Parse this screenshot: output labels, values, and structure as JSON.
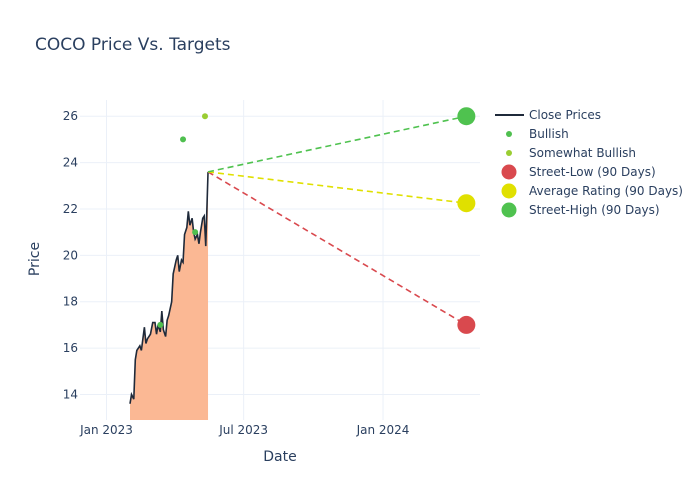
{
  "chart_data": {
    "type": "line",
    "title": "COCO Price Vs. Targets",
    "xlabel": "Date",
    "ylabel": "Price",
    "x_range": [
      "2022-11-27",
      "2024-05-08"
    ],
    "y_range": [
      12.9,
      26.7
    ],
    "x_ticks": [
      {
        "date": "2023-01-01",
        "label": "Jan 2023"
      },
      {
        "date": "2023-07-01",
        "label": "Jul 2023"
      },
      {
        "date": "2024-01-01",
        "label": "Jan 2024"
      }
    ],
    "y_ticks": [
      14,
      16,
      18,
      20,
      22,
      24,
      26
    ],
    "grid": true,
    "close_prices": {
      "name": "Close Prices",
      "color": "#1f2a3a",
      "fill_color": "#fbb894",
      "points": [
        [
          "2023-02-01",
          13.6
        ],
        [
          "2023-02-03",
          14.0
        ],
        [
          "2023-02-06",
          13.8
        ],
        [
          "2023-02-08",
          15.5
        ],
        [
          "2023-02-10",
          15.9
        ],
        [
          "2023-02-14",
          16.1
        ],
        [
          "2023-02-16",
          15.9
        ],
        [
          "2023-02-20",
          16.9
        ],
        [
          "2023-02-22",
          16.2
        ],
        [
          "2023-02-24",
          16.4
        ],
        [
          "2023-02-28",
          16.6
        ],
        [
          "2023-03-03",
          17.1
        ],
        [
          "2023-03-06",
          17.1
        ],
        [
          "2023-03-08",
          16.6
        ],
        [
          "2023-03-10",
          17.0
        ],
        [
          "2023-03-13",
          16.7
        ],
        [
          "2023-03-15",
          17.6
        ],
        [
          "2023-03-17",
          16.8
        ],
        [
          "2023-03-20",
          16.5
        ],
        [
          "2023-03-22",
          17.2
        ],
        [
          "2023-03-24",
          17.4
        ],
        [
          "2023-03-28",
          18.0
        ],
        [
          "2023-03-30",
          19.2
        ],
        [
          "2023-04-03",
          19.8
        ],
        [
          "2023-04-05",
          20.0
        ],
        [
          "2023-04-07",
          19.3
        ],
        [
          "2023-04-10",
          19.8
        ],
        [
          "2023-04-12",
          19.7
        ],
        [
          "2023-04-14",
          20.9
        ],
        [
          "2023-04-17",
          21.2
        ],
        [
          "2023-04-19",
          21.9
        ],
        [
          "2023-04-21",
          21.3
        ],
        [
          "2023-04-24",
          21.6
        ],
        [
          "2023-04-26",
          21.0
        ],
        [
          "2023-04-28",
          20.7
        ],
        [
          "2023-05-01",
          20.9
        ],
        [
          "2023-05-03",
          20.5
        ],
        [
          "2023-05-05",
          21.0
        ],
        [
          "2023-05-08",
          21.6
        ],
        [
          "2023-05-10",
          21.7
        ],
        [
          "2023-05-12",
          20.4
        ],
        [
          "2023-05-15",
          23.6
        ]
      ]
    },
    "ratings": [
      {
        "name": "Bullish",
        "color": "#4fbf4f",
        "points": [
          [
            "2023-03-13",
            17.0
          ],
          [
            "2023-04-12",
            25.0
          ],
          [
            "2023-04-28",
            21.0
          ]
        ]
      },
      {
        "name": "Somewhat Bullish",
        "color": "#9acd32",
        "points": [
          [
            "2023-05-11",
            26.0
          ]
        ]
      }
    ],
    "targets": {
      "start": [
        "2023-05-15",
        23.6
      ],
      "date": "2024-04-20",
      "series": [
        {
          "name": "Street-Low (90 Days)",
          "value": 17.0,
          "color": "#d9494e"
        },
        {
          "name": "Average Rating (90 Days)",
          "value": 22.25,
          "color": "#e0e000"
        },
        {
          "name": "Street-High (90 Days)",
          "value": 26.0,
          "color": "#4fc24f"
        }
      ]
    },
    "legend_position": "right"
  }
}
